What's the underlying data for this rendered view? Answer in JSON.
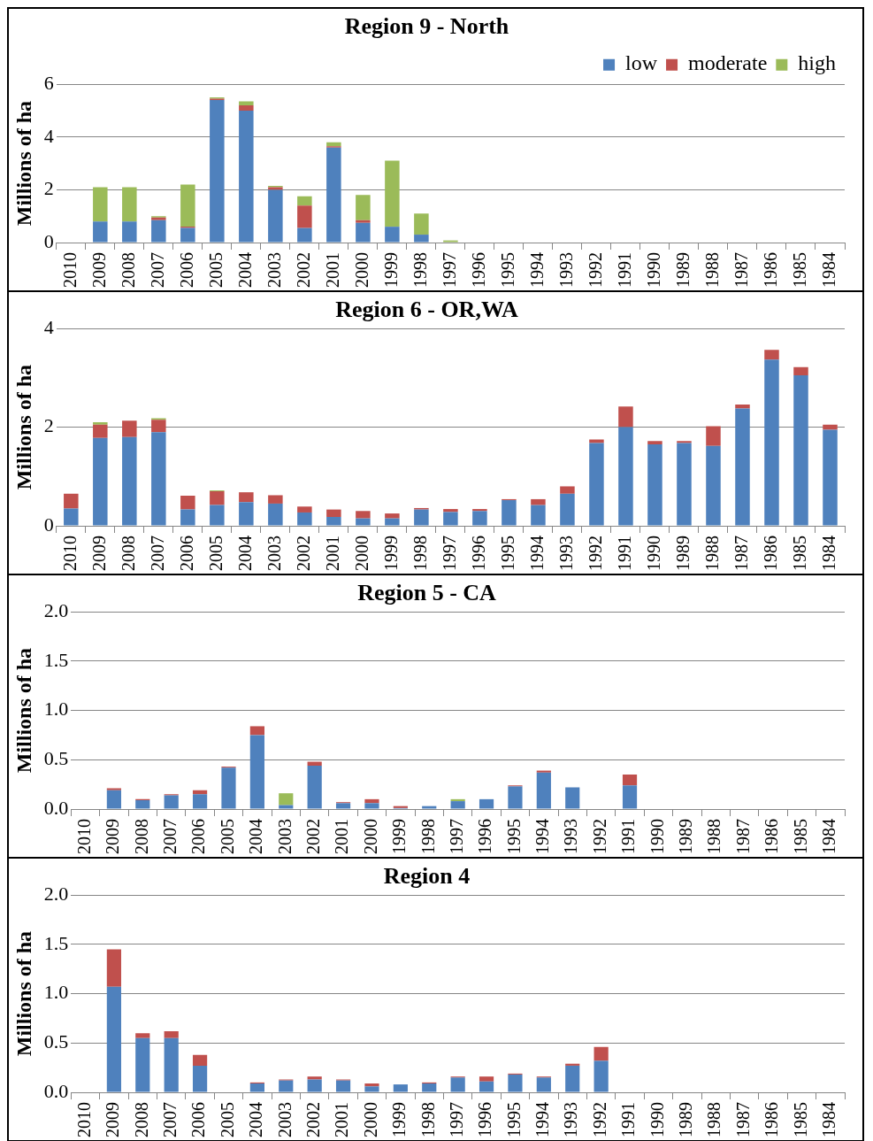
{
  "chart_data": [
    {
      "type": "bar",
      "title": "Region 9 - North",
      "ylabel": "Millions of ha",
      "stacked": true,
      "grid": "y",
      "legend": "top right",
      "categories": [
        "2010",
        "2009",
        "2008",
        "2007",
        "2006",
        "2005",
        "2004",
        "2003",
        "2002",
        "2001",
        "2000",
        "1999",
        "1998",
        "1997",
        "1996",
        "1995",
        "1994",
        "1993",
        "1992",
        "1991",
        "1990",
        "1989",
        "1988",
        "1987",
        "1986",
        "1985",
        "1984"
      ],
      "ylim": [
        0,
        6
      ],
      "yticks": [
        0,
        2,
        4,
        6
      ],
      "series": [
        {
          "name": "low",
          "color": "#4f81bd",
          "values": [
            0,
            0.8,
            0.8,
            0.85,
            0.55,
            5.4,
            5.0,
            2.0,
            0.55,
            3.6,
            0.75,
            0.6,
            0.3,
            0,
            0,
            0,
            0,
            0,
            0,
            0,
            0,
            0,
            0,
            0,
            0,
            0,
            0
          ]
        },
        {
          "name": "moderate",
          "color": "#c0504d",
          "values": [
            0,
            0,
            0,
            0.1,
            0.05,
            0.05,
            0.2,
            0.1,
            0.85,
            0.05,
            0.1,
            0,
            0,
            0,
            0,
            0,
            0,
            0,
            0,
            0,
            0,
            0,
            0,
            0,
            0,
            0,
            0
          ]
        },
        {
          "name": "high",
          "color": "#9bbb59",
          "values": [
            0,
            1.3,
            1.3,
            0.05,
            1.6,
            0.05,
            0.15,
            0.05,
            0.35,
            0.15,
            0.95,
            2.5,
            0.8,
            0.08,
            0,
            0,
            0,
            0,
            0,
            0,
            0,
            0,
            0,
            0,
            0,
            0,
            0
          ]
        }
      ]
    },
    {
      "type": "bar",
      "title": "Region 6 - OR,WA",
      "ylabel": "Millions of ha",
      "stacked": true,
      "grid": "y",
      "categories": [
        "2010",
        "2009",
        "2008",
        "2007",
        "2006",
        "2005",
        "2004",
        "2003",
        "2002",
        "2001",
        "2000",
        "1999",
        "1998",
        "1997",
        "1996",
        "1995",
        "1994",
        "1993",
        "1992",
        "1991",
        "1990",
        "1989",
        "1988",
        "1987",
        "1986",
        "1985",
        "1984"
      ],
      "ylim": [
        0,
        4
      ],
      "yticks": [
        0,
        2,
        4
      ],
      "series": [
        {
          "color": "#4f81bd",
          "values": [
            0.35,
            1.78,
            1.8,
            1.9,
            0.33,
            0.42,
            0.48,
            0.45,
            0.27,
            0.18,
            0.15,
            0.15,
            0.33,
            0.28,
            0.3,
            0.52,
            0.42,
            0.65,
            1.68,
            2.0,
            1.65,
            1.68,
            1.62,
            2.38,
            3.37,
            3.05,
            1.95
          ]
        },
        {
          "color": "#c0504d",
          "values": [
            0.3,
            0.27,
            0.33,
            0.25,
            0.28,
            0.28,
            0.2,
            0.17,
            0.12,
            0.15,
            0.15,
            0.1,
            0.03,
            0.06,
            0.04,
            0.02,
            0.12,
            0.15,
            0.07,
            0.42,
            0.07,
            0.04,
            0.4,
            0.08,
            0.2,
            0.17,
            0.1
          ]
        },
        {
          "color": "#9bbb59",
          "values": [
            0,
            0.05,
            0,
            0.03,
            0,
            0.02,
            0,
            0,
            0,
            0,
            0,
            0,
            0,
            0,
            0,
            0,
            0,
            0,
            0,
            0,
            0,
            0,
            0,
            0,
            0,
            0,
            0
          ]
        }
      ]
    },
    {
      "type": "bar",
      "title": "Region 5 - CA",
      "ylabel": "Millions of ha",
      "stacked": true,
      "grid": "y",
      "categories": [
        "2010",
        "2009",
        "2008",
        "2007",
        "2006",
        "2005",
        "2004",
        "2003",
        "2002",
        "2001",
        "2000",
        "1999",
        "1998",
        "1997",
        "1996",
        "1995",
        "1994",
        "1993",
        "1992",
        "1991",
        "1990",
        "1989",
        "1988",
        "1987",
        "1986",
        "1985",
        "1984"
      ],
      "ylim": [
        0,
        2
      ],
      "yticks": [
        {
          "value": 0,
          "label": "0.0"
        },
        0.5,
        {
          "value": 1,
          "label": "1.0"
        },
        1.5,
        {
          "value": 2,
          "label": "2.0"
        }
      ],
      "series": [
        {
          "color": "#4f81bd",
          "values": [
            0,
            0.19,
            0.09,
            0.14,
            0.15,
            0.42,
            0.75,
            0.04,
            0.44,
            0.06,
            0.06,
            0.01,
            0.03,
            0.08,
            0.1,
            0.23,
            0.37,
            0.22,
            0,
            0.24,
            0,
            0,
            0,
            0,
            0,
            0,
            0
          ]
        },
        {
          "color": "#c0504d",
          "values": [
            0,
            0.02,
            0.01,
            0.01,
            0.04,
            0.01,
            0.09,
            0,
            0.04,
            0.01,
            0.04,
            0.02,
            0,
            0,
            0,
            0.01,
            0.02,
            0,
            0,
            0.11,
            0,
            0,
            0,
            0,
            0,
            0,
            0
          ]
        },
        {
          "color": "#9bbb59",
          "values": [
            0,
            0,
            0,
            0,
            0,
            0,
            0,
            0.12,
            0,
            0,
            0,
            0,
            0,
            0.02,
            0,
            0,
            0,
            0,
            0,
            0,
            0,
            0,
            0,
            0,
            0,
            0,
            0
          ]
        }
      ]
    },
    {
      "type": "bar",
      "title": "Region 4",
      "ylabel": "Millions of ha",
      "stacked": true,
      "grid": "y",
      "categories": [
        "2010",
        "2009",
        "2008",
        "2007",
        "2006",
        "2005",
        "2004",
        "2003",
        "2002",
        "2001",
        "2000",
        "1999",
        "1998",
        "1997",
        "1996",
        "1995",
        "1994",
        "1993",
        "1992",
        "1991",
        "1990",
        "1989",
        "1988",
        "1987",
        "1986",
        "1985",
        "1984"
      ],
      "ylim": [
        0,
        2
      ],
      "yticks": [
        {
          "value": 0,
          "label": "0.0"
        },
        0.5,
        {
          "value": 1,
          "label": "1.0"
        },
        1.5,
        {
          "value": 2,
          "label": "2.0"
        }
      ],
      "series": [
        {
          "color": "#4f81bd",
          "values": [
            0,
            1.07,
            0.55,
            0.55,
            0.27,
            0,
            0.09,
            0.12,
            0.13,
            0.12,
            0.06,
            0.08,
            0.09,
            0.15,
            0.11,
            0.18,
            0.15,
            0.27,
            0.32,
            0,
            0,
            0,
            0,
            0,
            0,
            0,
            0
          ]
        },
        {
          "color": "#c0504d",
          "values": [
            0,
            0.38,
            0.05,
            0.07,
            0.11,
            0,
            0.01,
            0.01,
            0.03,
            0.01,
            0.03,
            0,
            0.01,
            0.01,
            0.05,
            0.01,
            0.01,
            0.02,
            0.14,
            0,
            0,
            0,
            0,
            0,
            0,
            0,
            0
          ]
        }
      ]
    }
  ]
}
